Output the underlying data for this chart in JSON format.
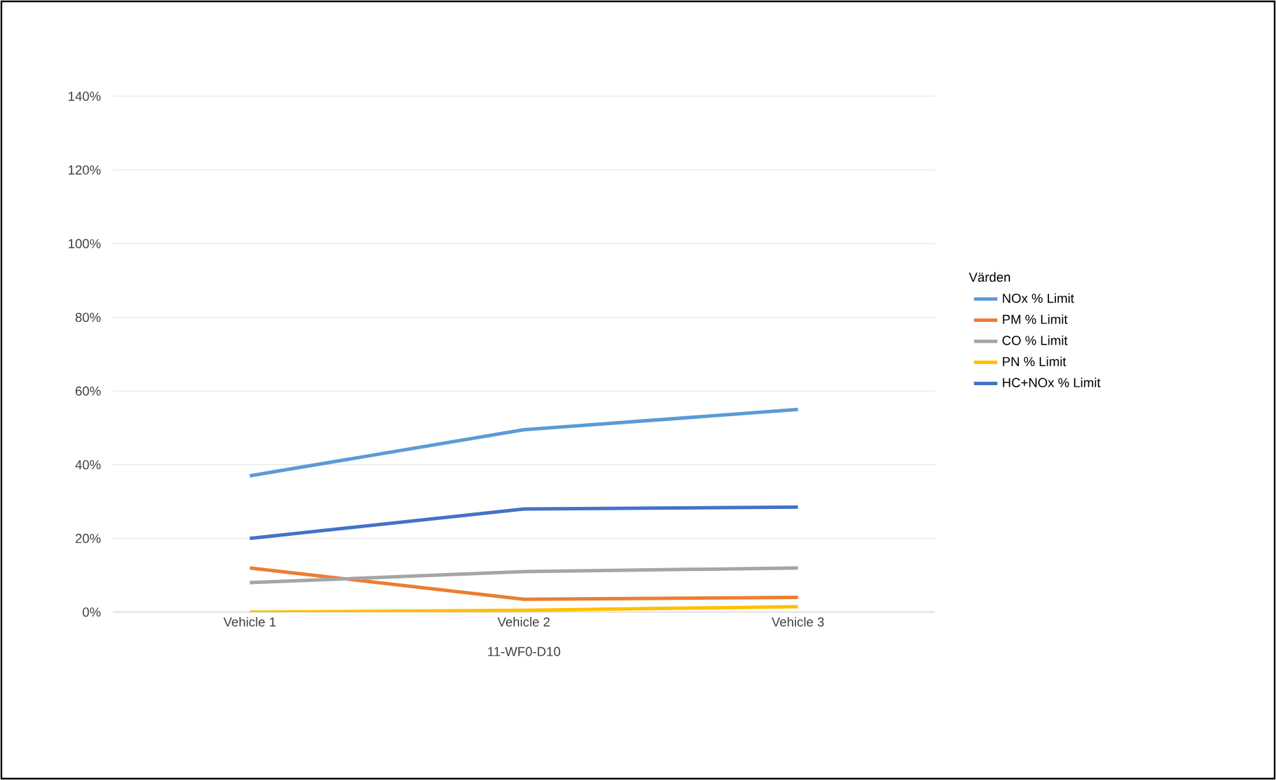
{
  "chart_data": {
    "type": "line",
    "xlabel": "11-WF0-D10",
    "legend_title": "Värden",
    "categories": [
      "Vehicle 1",
      "Vehicle 2",
      "Vehicle 3"
    ],
    "series": [
      {
        "name": "NOx % Limit",
        "color": "#5b9bd5",
        "values": [
          37,
          49.5,
          55
        ]
      },
      {
        "name": "PM % Limit",
        "color": "#ed7d31",
        "values": [
          12,
          3.5,
          4
        ]
      },
      {
        "name": "CO % Limit",
        "color": "#a5a5a5",
        "values": [
          8,
          11,
          12
        ]
      },
      {
        "name": "PN % Limit",
        "color": "#ffc000",
        "values": [
          0,
          0.5,
          1.5
        ]
      },
      {
        "name": "HC+NOx % Limit",
        "color": "#4472c4",
        "values": [
          20,
          28,
          28.5
        ]
      }
    ],
    "ylim": [
      0,
      140
    ],
    "yticks": [
      {
        "value": 0,
        "label": "0%"
      },
      {
        "value": 20,
        "label": "20%"
      },
      {
        "value": 40,
        "label": "40%"
      },
      {
        "value": 60,
        "label": "60%"
      },
      {
        "value": 80,
        "label": "80%"
      },
      {
        "value": 100,
        "label": "100%"
      },
      {
        "value": 120,
        "label": "120%"
      },
      {
        "value": 140,
        "label": "140%"
      }
    ],
    "grid": "y",
    "legend": "right",
    "marker": "none",
    "line_style": "solid"
  }
}
